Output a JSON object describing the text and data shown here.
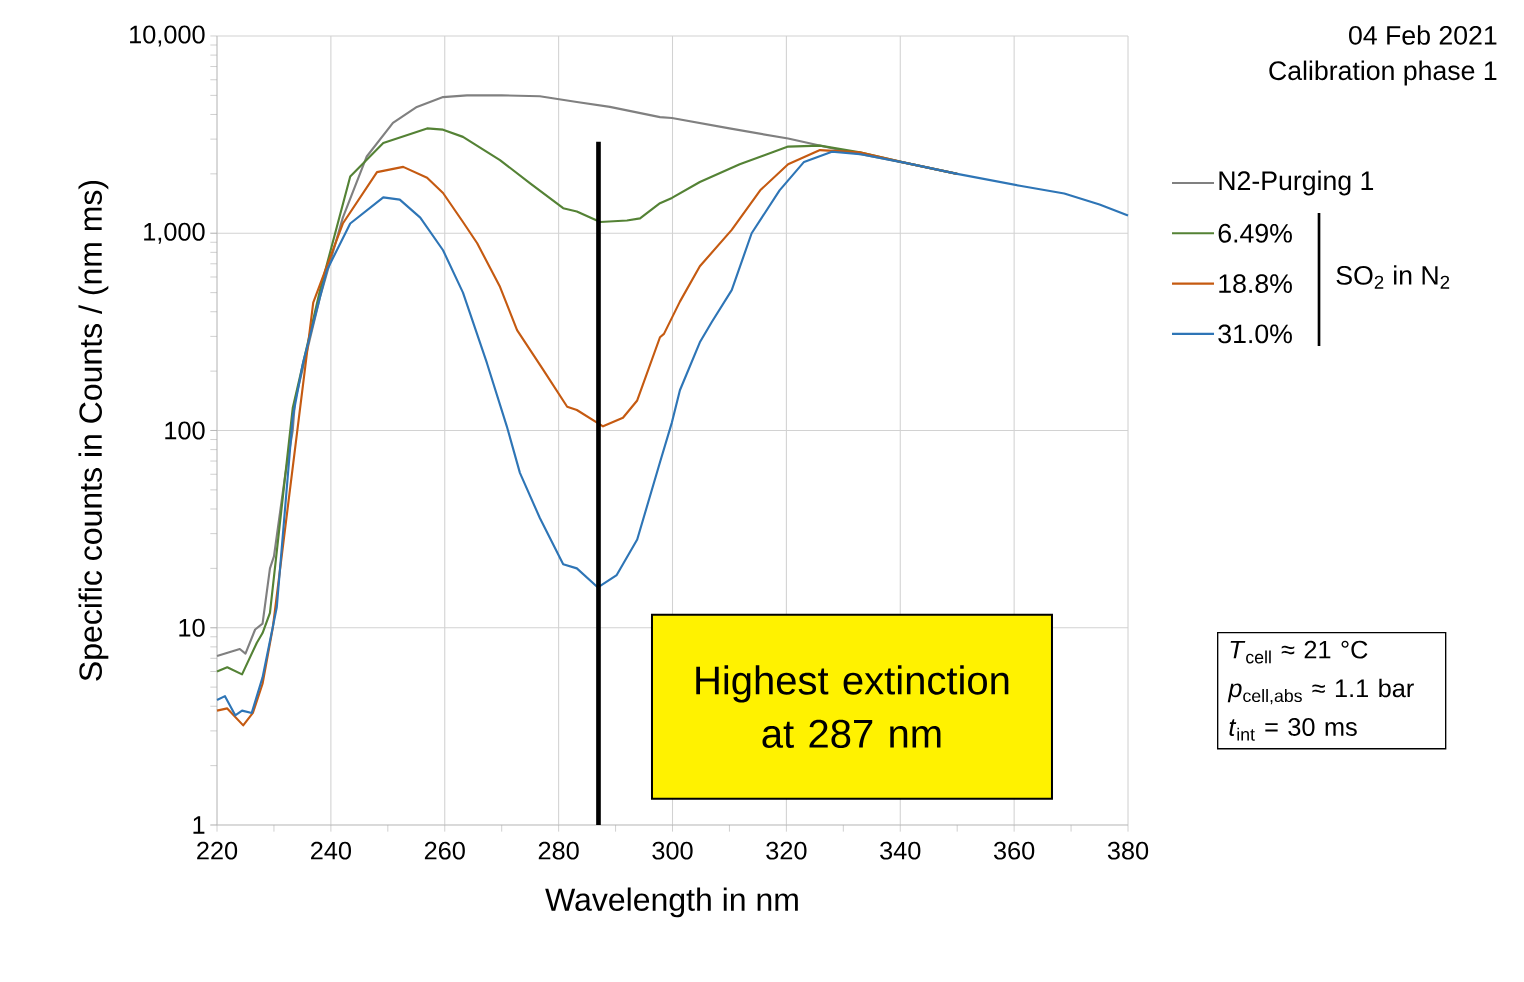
{
  "chart_data": {
    "type": "line",
    "xlabel": "Wavelength in nm",
    "ylabel": "Specific counts in Counts / (nm ms)",
    "xlim": [
      220,
      380
    ],
    "ylim": [
      1,
      10000
    ],
    "log": "y",
    "grid": true,
    "legend": "right",
    "line_style": "solid",
    "xticks": [
      220,
      240,
      260,
      280,
      300,
      320,
      340,
      360,
      380
    ],
    "yticks": [
      1,
      10,
      100,
      {
        "value": 1000,
        "label": "1,000"
      },
      {
        "value": 10000,
        "label": "10,000"
      }
    ],
    "series": [
      {
        "name": "N2-Purging 1",
        "color": "#808080",
        "x": [
          220,
          222,
          224,
          225,
          226.7,
          228,
          229.3,
          230,
          232,
          233.3,
          233.7,
          238.1,
          242.1,
          246.3,
          250.9,
          255.1,
          259.7,
          263.9,
          270,
          276.7,
          283.2,
          289,
          297.8,
          299.9,
          310,
          320.3,
          329.4,
          340.7,
          350
        ],
        "values": [
          7.2,
          7.5,
          7.8,
          7.4,
          9.8,
          10.5,
          20,
          23,
          60,
          100,
          142,
          475,
          1200,
          2450,
          3630,
          4370,
          4900,
          5000,
          5000,
          4950,
          4630,
          4370,
          3880,
          3840,
          3400,
          3020,
          2640,
          2280,
          2000
        ]
      },
      {
        "name": "6.49%",
        "color": "#548235",
        "x": [
          220,
          221.8,
          224.4,
          227,
          228,
          229.3,
          233.3,
          238.1,
          243.4,
          249.2,
          256.9,
          259.7,
          263.2,
          269.7,
          275,
          280.8,
          283.2,
          287.3,
          292,
          294.3,
          297.8,
          299.9,
          304.8,
          311.8,
          320.3,
          325.9,
          332.9,
          340.7,
          350
        ],
        "values": [
          6.0,
          6.3,
          5.8,
          8.4,
          9.4,
          11.9,
          130,
          515,
          1940,
          2870,
          3400,
          3350,
          3080,
          2350,
          1790,
          1340,
          1290,
          1140,
          1160,
          1190,
          1420,
          1510,
          1820,
          2240,
          2750,
          2780,
          2570,
          2280,
          2000
        ]
      },
      {
        "name": "18.8%",
        "color": "#c55a11",
        "x": [
          220,
          221.8,
          224.6,
          226.3,
          228,
          229.8,
          236.9,
          242.1,
          248.1,
          252.7,
          256.9,
          259.7,
          263.2,
          265.7,
          269.7,
          272.7,
          277.3,
          281.5,
          283.2,
          287.8,
          291.3,
          293.8,
          297.8,
          298.5,
          301.3,
          304.8,
          310.4,
          315.4,
          320.3,
          325.9,
          332.9,
          340.7,
          350
        ],
        "values": [
          3.8,
          3.9,
          3.2,
          3.7,
          5.2,
          10,
          445,
          1120,
          2040,
          2170,
          1910,
          1600,
          1140,
          890,
          535,
          323,
          203,
          132,
          127,
          105,
          116,
          142,
          297,
          309,
          450,
          680,
          1040,
          1650,
          2240,
          2640,
          2570,
          2280,
          2000
        ]
      },
      {
        "name": "31.0%",
        "color": "#2e75b6",
        "x": [
          220,
          221.4,
          223.2,
          224.4,
          226.1,
          228,
          230.5,
          233.3,
          235.1,
          239.3,
          243.4,
          249.2,
          252.1,
          255.7,
          259.7,
          263.2,
          267.4,
          270.9,
          273.2,
          276.7,
          280.8,
          283.2,
          286.9,
          290.2,
          293.8,
          297.8,
          299.9,
          301.3,
          304.8,
          306.9,
          310.4,
          313.9,
          318.8,
          323.1,
          328,
          332.9,
          340.7,
          350,
          361,
          368.8,
          375,
          380
        ],
        "values": [
          4.3,
          4.5,
          3.6,
          3.8,
          3.7,
          5.6,
          12.7,
          117,
          220,
          650,
          1120,
          1520,
          1480,
          1200,
          820,
          500,
          220,
          105,
          61,
          36,
          21,
          20,
          16,
          18.5,
          28,
          69,
          110,
          160,
          280,
          355,
          515,
          1000,
          1650,
          2300,
          2590,
          2520,
          2280,
          2000,
          1740,
          1590,
          1400,
          1230
        ]
      }
    ],
    "ref_lines": [
      {
        "axis": "x",
        "value": 287,
        "label": "Highest extinction at 287 nm",
        "color": "#000000"
      }
    ],
    "annotations": [
      "04 Feb 2021",
      "Calibration phase 1",
      "SO$_{2}$ in N$_{2}$",
      "*T*$_{cell}$ ≈ 21 °C",
      "*p*$_{cell,abs}$ ≈ 1.1 bar",
      "*t*$_{int}$ = 30 ms"
    ]
  }
}
